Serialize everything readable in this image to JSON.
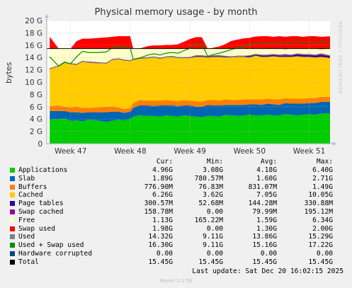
{
  "title": "Physical memory usage - by month",
  "watermark": "RRDTOOL / TOBI OETIKER",
  "footer": "Munin 2.0.56",
  "last_update": "Last update: Sat Dec 20 16:02:15 2025",
  "legend_headers": {
    "cur": "Cur:",
    "min": "Min:",
    "avg": "Avg:",
    "max": "Max:"
  },
  "legend": [
    {
      "name": "Applications",
      "color": "#00CC00",
      "cur": "4.96G",
      "min": "3.08G",
      "avg": "4.18G",
      "max": "6.40G"
    },
    {
      "name": "Slab",
      "color": "#0066B3",
      "cur": "1.89G",
      "min": "780.57M",
      "avg": "1.60G",
      "max": "2.71G"
    },
    {
      "name": "Buffers",
      "color": "#FF8000",
      "cur": "776.90M",
      "min": "76.83M",
      "avg": "831.07M",
      "max": "1.49G"
    },
    {
      "name": "Cached",
      "color": "#FFCC00",
      "cur": "6.26G",
      "min": "3.62G",
      "avg": "7.05G",
      "max": "10.05G"
    },
    {
      "name": "Page tables",
      "color": "#330099",
      "cur": "300.57M",
      "min": "52.68M",
      "avg": "144.28M",
      "max": "330.88M"
    },
    {
      "name": "Swap cached",
      "color": "#990099",
      "cur": "158.78M",
      "min": "0.00",
      "avg": "79.99M",
      "max": "195.12M"
    },
    {
      "name": "Free",
      "color": "#FFFFCC",
      "cur": "1.13G",
      "min": "165.22M",
      "avg": "1.59G",
      "max": "6.34G"
    },
    {
      "name": "Swap used",
      "color": "#FF0000",
      "cur": "1.98G",
      "min": "0.00",
      "avg": "1.30G",
      "max": "2.00G"
    },
    {
      "name": "Used",
      "color": "#808080",
      "cur": "14.32G",
      "min": "9.11G",
      "avg": "13.86G",
      "max": "15.29G"
    },
    {
      "name": "Used + Swap used",
      "color": "#008F00",
      "cur": "16.30G",
      "min": "9.11G",
      "avg": "15.16G",
      "max": "17.22G"
    },
    {
      "name": "Hardware corrupted",
      "color": "#00487D",
      "cur": "0.00",
      "min": "0.00",
      "avg": "0.00",
      "max": "0.00"
    },
    {
      "name": "Total",
      "color": "#000000",
      "cur": "15.45G",
      "min": "15.45G",
      "avg": "15.45G",
      "max": "15.45G"
    }
  ],
  "chart_data": {
    "type": "area",
    "title": "Physical memory usage - by month",
    "ylabel": "bytes",
    "ylim": [
      0,
      20
    ],
    "yticks": [
      "0",
      "2 G",
      "4 G",
      "6 G",
      "8 G",
      "10 G",
      "12 G",
      "14 G",
      "16 G",
      "18 G",
      "20 G"
    ],
    "xticks": [
      "Week 47",
      "Week 48",
      "Week 49",
      "Week 50",
      "Week 51"
    ],
    "xtick_positions": [
      1.2,
      2.2,
      3.2,
      4.2,
      5.2
    ],
    "xlim": [
      0.8,
      5.55
    ],
    "x": [
      0.85,
      1.0,
      1.1,
      1.2,
      1.3,
      1.4,
      1.5,
      1.65,
      1.8,
      1.9,
      2.0,
      2.1,
      2.2,
      2.25,
      2.35,
      2.5,
      2.6,
      2.7,
      2.8,
      2.9,
      3.0,
      3.1,
      3.2,
      3.3,
      3.4,
      3.5,
      3.6,
      3.7,
      3.8,
      3.9,
      4.0,
      4.1,
      4.2,
      4.3,
      4.4,
      4.5,
      4.6,
      4.7,
      4.8,
      4.9,
      5.0,
      5.1,
      5.2,
      5.3,
      5.4,
      5.55
    ],
    "stack_series": [
      {
        "name": "Applications",
        "color": "#00CC00",
        "values": [
          3.9,
          4.0,
          4.1,
          3.7,
          3.8,
          3.6,
          3.9,
          3.8,
          3.5,
          3.7,
          3.9,
          3.8,
          4.0,
          4.4,
          4.6,
          4.5,
          4.5,
          4.4,
          4.6,
          4.5,
          4.4,
          4.6,
          4.5,
          4.4,
          4.3,
          4.5,
          4.5,
          4.4,
          4.7,
          4.6,
          4.5,
          4.6,
          4.7,
          4.6,
          4.6,
          4.7,
          4.6,
          4.6,
          4.8,
          4.7,
          4.6,
          4.7,
          4.8,
          4.7,
          4.9,
          4.9
        ]
      },
      {
        "name": "Slab",
        "color": "#0066B3",
        "values": [
          1.4,
          1.3,
          1.2,
          1.4,
          1.3,
          1.4,
          1.2,
          1.3,
          1.6,
          1.5,
          1.3,
          1.2,
          1.2,
          1.4,
          1.6,
          1.7,
          1.6,
          1.8,
          1.6,
          1.7,
          1.7,
          1.6,
          1.7,
          1.6,
          1.7,
          1.8,
          1.7,
          1.8,
          1.6,
          1.7,
          1.8,
          1.7,
          1.7,
          1.8,
          1.7,
          1.8,
          1.8,
          1.7,
          1.8,
          1.8,
          1.9,
          1.8,
          1.8,
          1.9,
          1.9,
          1.9
        ]
      },
      {
        "name": "Buffers",
        "color": "#FF8000",
        "values": [
          0.8,
          0.9,
          0.7,
          0.8,
          0.9,
          0.8,
          0.7,
          0.8,
          0.9,
          0.8,
          0.7,
          0.6,
          0.6,
          0.8,
          0.9,
          0.8,
          0.9,
          0.8,
          0.9,
          0.8,
          0.8,
          0.9,
          0.8,
          0.9,
          0.8,
          0.8,
          0.9,
          0.8,
          0.9,
          0.8,
          0.8,
          0.9,
          0.8,
          0.8,
          0.9,
          0.8,
          0.8,
          0.9,
          0.8,
          0.8,
          0.8,
          0.8,
          0.8,
          0.8,
          0.8,
          0.8
        ]
      },
      {
        "name": "Cached",
        "color": "#FFCC00",
        "values": [
          6.0,
          6.4,
          7.2,
          7.0,
          6.8,
          7.5,
          7.4,
          7.2,
          7.0,
          7.6,
          7.8,
          7.9,
          7.6,
          7.0,
          6.7,
          6.9,
          7.0,
          6.8,
          6.9,
          7.1,
          7.0,
          6.8,
          6.9,
          7.2,
          7.3,
          6.9,
          7.0,
          7.1,
          6.8,
          6.9,
          7.0,
          6.9,
          6.8,
          7.1,
          6.9,
          6.8,
          7.0,
          6.9,
          6.7,
          6.8,
          6.9,
          6.8,
          6.7,
          6.6,
          6.5,
          6.3
        ]
      },
      {
        "name": "Page tables",
        "color": "#330099",
        "values": [
          0.1,
          0.1,
          0.1,
          0.1,
          0.1,
          0.1,
          0.1,
          0.1,
          0.1,
          0.1,
          0.1,
          0.1,
          0.1,
          0.1,
          0.1,
          0.1,
          0.1,
          0.1,
          0.1,
          0.1,
          0.1,
          0.1,
          0.1,
          0.1,
          0.1,
          0.1,
          0.1,
          0.1,
          0.1,
          0.1,
          0.1,
          0.1,
          0.2,
          0.2,
          0.2,
          0.2,
          0.2,
          0.2,
          0.2,
          0.2,
          0.3,
          0.3,
          0.3,
          0.3,
          0.3,
          0.3
        ]
      },
      {
        "name": "Swap cached",
        "color": "#990099",
        "values": [
          0.05,
          0.05,
          0.05,
          0.05,
          0.05,
          0.05,
          0.05,
          0.05,
          0.05,
          0.05,
          0.05,
          0.05,
          0.05,
          0.05,
          0.05,
          0.05,
          0.05,
          0.05,
          0.05,
          0.05,
          0.05,
          0.05,
          0.1,
          0.1,
          0.1,
          0.1,
          0.1,
          0.1,
          0.1,
          0.1,
          0.1,
          0.1,
          0.1,
          0.1,
          0.15,
          0.15,
          0.15,
          0.15,
          0.15,
          0.15,
          0.15,
          0.15,
          0.15,
          0.15,
          0.15,
          0.15
        ]
      },
      {
        "name": "Free",
        "color": "#FFFFCC",
        "values": [
          3.2,
          2.7,
          2.3,
          2.4,
          2.5,
          2.0,
          2.1,
          2.2,
          2.3,
          1.7,
          1.6,
          1.8,
          1.9,
          1.7,
          1.5,
          1.4,
          1.3,
          1.5,
          1.3,
          1.2,
          1.4,
          1.4,
          1.4,
          1.1,
          1.1,
          1.2,
          1.1,
          1.1,
          1.2,
          1.3,
          1.2,
          1.2,
          1.1,
          0.9,
          1.0,
          1.0,
          0.9,
          1.0,
          0.9,
          1.0,
          0.8,
          0.9,
          0.9,
          1.0,
          0.8,
          1.1
        ]
      },
      {
        "name": "Swap used",
        "color": "#FF0000",
        "values": [
          1.9,
          0.0,
          0.0,
          0.0,
          1.2,
          1.6,
          1.6,
          1.7,
          1.8,
          1.9,
          2.0,
          2.0,
          2.0,
          0.0,
          0.0,
          0.4,
          0.5,
          0.5,
          0.6,
          0.6,
          0.7,
          1.1,
          1.5,
          1.9,
          1.9,
          0.0,
          0.2,
          0.4,
          0.8,
          1.2,
          1.4,
          1.6,
          1.8,
          1.9,
          2.0,
          2.0,
          1.9,
          2.0,
          2.0,
          2.0,
          2.0,
          1.9,
          2.0,
          2.0,
          2.0,
          1.98
        ]
      }
    ],
    "lines": [
      {
        "name": "Used",
        "color": "#808080",
        "values": [
          12.2,
          12.6,
          13.2,
          13.0,
          12.9,
          13.4,
          13.2,
          13.1,
          13.1,
          13.7,
          13.8,
          13.6,
          13.5,
          13.7,
          13.9,
          14.0,
          14.1,
          13.9,
          14.1,
          14.2,
          14.0,
          14.0,
          14.0,
          14.3,
          14.3,
          14.2,
          14.3,
          14.3,
          14.2,
          14.1,
          14.2,
          14.2,
          14.3,
          14.5,
          14.4,
          14.4,
          14.5,
          14.4,
          14.5,
          14.4,
          14.6,
          14.5,
          14.5,
          14.4,
          14.6,
          14.3
        ]
      },
      {
        "name": "Used + Swap used",
        "color": "#008F00",
        "values": [
          14.1,
          12.6,
          13.2,
          13.0,
          14.1,
          15.0,
          14.8,
          14.8,
          14.9,
          15.6,
          15.8,
          15.6,
          15.5,
          13.7,
          13.9,
          14.4,
          14.6,
          14.4,
          14.7,
          14.8,
          14.7,
          15.1,
          15.5,
          16.2,
          16.2,
          14.2,
          14.5,
          14.7,
          15.0,
          15.3,
          15.6,
          15.8,
          16.1,
          16.4,
          16.4,
          16.4,
          16.4,
          16.4,
          16.5,
          16.4,
          16.6,
          16.4,
          16.5,
          16.4,
          16.6,
          16.3
        ]
      }
    ],
    "total": {
      "name": "Total",
      "color": "#000000",
      "value": 15.45
    }
  }
}
